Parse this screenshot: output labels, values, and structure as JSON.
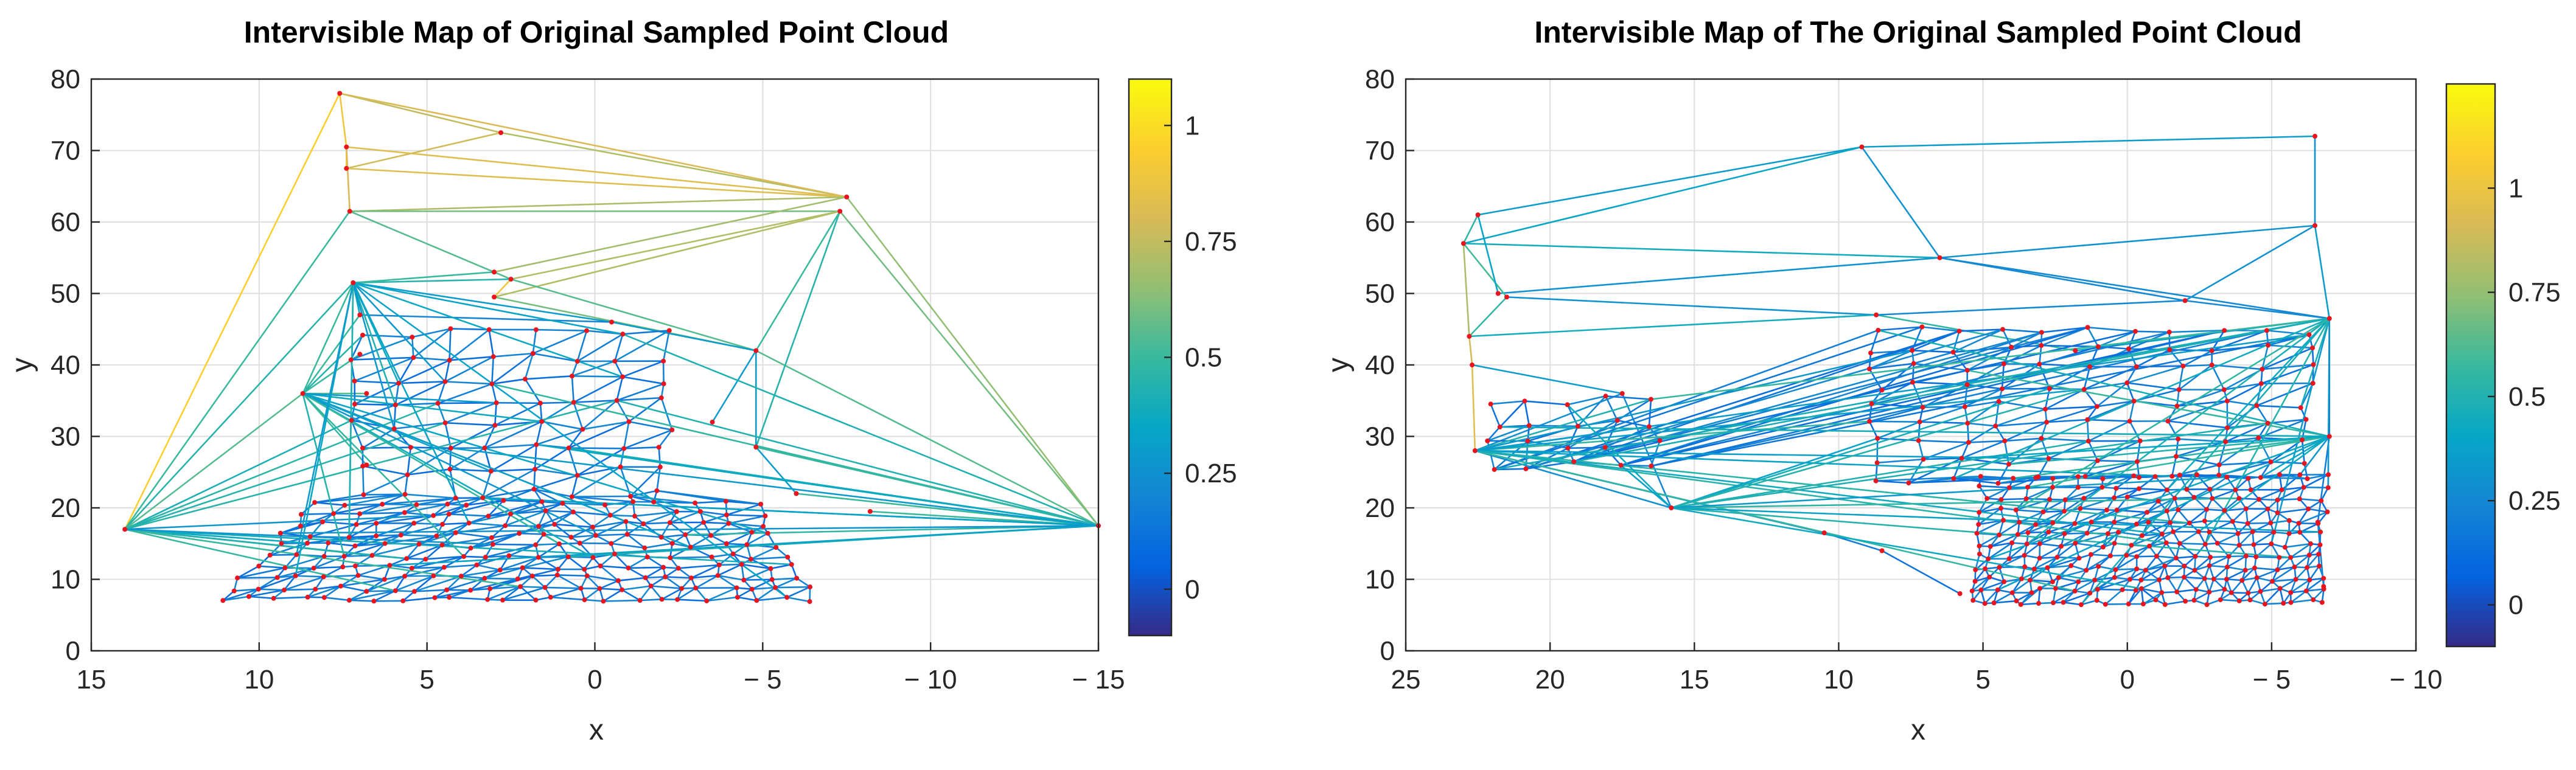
{
  "chart_data": [
    {
      "type": "network",
      "title": "Intervisible Map of Original Sampled Point Cloud",
      "xlabel": "x",
      "ylabel": "y",
      "xlim": [
        15,
        -15
      ],
      "ylim": [
        0,
        80
      ],
      "xticks": [
        15,
        10,
        5,
        0,
        -5,
        -10,
        -15
      ],
      "xtick_labels": [
        "15",
        "10",
        "5",
        "0",
        "− 5",
        "− 10",
        "− 15"
      ],
      "yticks": [
        0,
        10,
        20,
        30,
        40,
        50,
        60,
        70,
        80
      ],
      "ytick_labels": [
        "0",
        "10",
        "20",
        "30",
        "40",
        "50",
        "60",
        "70",
        "80"
      ],
      "grid": true,
      "colorbar": {
        "range": [
          -0.1,
          1.1
        ],
        "ticks": [
          0,
          0.25,
          0.5,
          0.75,
          1
        ],
        "tick_labels": [
          "0",
          "0.25",
          "0.5",
          "0.75",
          "1"
        ],
        "colormap": "parula"
      },
      "nodes": [
        [
          14,
          17
        ],
        [
          7.6,
          78
        ],
        [
          7.4,
          70.5
        ],
        [
          7.4,
          67.5
        ],
        [
          2.8,
          72.5
        ],
        [
          -7.5,
          63.5
        ],
        [
          -7.3,
          61.5
        ],
        [
          -15,
          17.5
        ],
        [
          7.3,
          61.5
        ],
        [
          7.2,
          51.5
        ],
        [
          3,
          53
        ],
        [
          3,
          49.5
        ],
        [
          2.5,
          52
        ],
        [
          -4.8,
          42
        ],
        [
          -4.8,
          28.5
        ],
        [
          8.7,
          36
        ],
        [
          7,
          47
        ],
        [
          7,
          41.5
        ],
        [
          -0.5,
          46
        ],
        [
          -6,
          22
        ],
        [
          -8.2,
          19.5
        ],
        [
          -3.5,
          32
        ],
        [
          6.8,
          36
        ],
        [
          6.8,
          26
        ]
      ],
      "edges_top": [
        [
          0,
          1,
          0.95
        ],
        [
          1,
          4,
          0.75
        ],
        [
          1,
          2,
          0.9
        ],
        [
          2,
          3,
          0.9
        ],
        [
          3,
          4,
          0.78
        ],
        [
          4,
          5,
          0.72
        ],
        [
          1,
          5,
          0.8
        ],
        [
          2,
          5,
          0.82
        ],
        [
          3,
          5,
          0.82
        ],
        [
          8,
          5,
          0.7
        ],
        [
          8,
          6,
          0.6
        ],
        [
          5,
          7,
          0.65
        ],
        [
          6,
          7,
          0.6
        ],
        [
          0,
          8,
          0.5
        ],
        [
          0,
          9,
          0.45
        ],
        [
          0,
          15,
          0.55
        ],
        [
          8,
          12,
          0.55
        ],
        [
          9,
          12,
          0.45
        ],
        [
          12,
          6,
          0.72
        ],
        [
          11,
          6,
          0.72
        ],
        [
          12,
          11,
          0.9
        ],
        [
          11,
          13,
          0.6
        ],
        [
          12,
          13,
          0.55
        ],
        [
          13,
          7,
          0.55
        ],
        [
          14,
          7,
          0.5
        ],
        [
          6,
          14,
          0.45
        ],
        [
          6,
          13,
          0.5
        ],
        [
          9,
          10,
          0.5
        ],
        [
          10,
          5,
          0.68
        ],
        [
          15,
          9,
          0.5
        ],
        [
          15,
          16,
          0.5
        ],
        [
          15,
          17,
          0.5
        ],
        [
          15,
          22,
          0.55
        ],
        [
          15,
          23,
          0.5
        ],
        [
          9,
          16,
          0.35
        ],
        [
          9,
          18,
          0.3
        ],
        [
          16,
          18,
          0.2
        ],
        [
          18,
          13,
          0.3
        ],
        [
          13,
          14,
          0.3
        ],
        [
          14,
          19,
          0.3
        ],
        [
          19,
          7,
          0.5
        ],
        [
          20,
          7,
          0.5
        ],
        [
          21,
          13,
          0.3
        ],
        [
          2,
          8,
          0.8
        ]
      ],
      "point_color": "#e8141e"
    },
    {
      "type": "network",
      "title": "Intervisible Map of The Original Sampled Point Cloud",
      "xlabel": "x",
      "ylabel": "y",
      "xlim": [
        25,
        -10
      ],
      "ylim": [
        0,
        80
      ],
      "xticks": [
        25,
        20,
        15,
        10,
        5,
        0,
        -5,
        -10
      ],
      "xtick_labels": [
        "25",
        "20",
        "15",
        "10",
        "5",
        "0",
        "− 5",
        "− 10"
      ],
      "yticks": [
        0,
        10,
        20,
        30,
        40,
        50,
        60,
        70,
        80
      ],
      "ytick_labels": [
        "0",
        "10",
        "20",
        "30",
        "40",
        "50",
        "60",
        "70",
        "80"
      ],
      "grid": true,
      "colorbar": {
        "range": [
          -0.1,
          1.25
        ],
        "ticks": [
          0,
          0.25,
          0.5,
          0.75,
          1
        ],
        "tick_labels": [
          "0",
          "0.25",
          "0.5",
          "0.75",
          "1"
        ],
        "colormap": "parula"
      },
      "nodes": [
        [
          23,
          57
        ],
        [
          22.5,
          61
        ],
        [
          22.8,
          44
        ],
        [
          22.7,
          40
        ],
        [
          22.6,
          28
        ],
        [
          21.5,
          49.5
        ],
        [
          21.8,
          50
        ],
        [
          9.2,
          70.5
        ],
        [
          -6.5,
          72
        ],
        [
          -6.5,
          59.5
        ],
        [
          6.5,
          55
        ],
        [
          8.7,
          47
        ],
        [
          1.8,
          42
        ],
        [
          -7,
          46.5
        ],
        [
          -7,
          30
        ],
        [
          -6.8,
          9
        ],
        [
          -6.6,
          18
        ],
        [
          17.5,
          36
        ],
        [
          15.8,
          20
        ],
        [
          10.5,
          16.5
        ],
        [
          8.5,
          14
        ],
        [
          5.8,
          8
        ],
        [
          -2,
          49
        ]
      ],
      "edges_top": [
        [
          0,
          1,
          0.55
        ],
        [
          0,
          2,
          0.8
        ],
        [
          2,
          3,
          0.9
        ],
        [
          3,
          4,
          0.95
        ],
        [
          1,
          7,
          0.35
        ],
        [
          0,
          7,
          0.4
        ],
        [
          7,
          8,
          0.35
        ],
        [
          8,
          9,
          0.3
        ],
        [
          7,
          10,
          0.3
        ],
        [
          0,
          10,
          0.45
        ],
        [
          9,
          10,
          0.3
        ],
        [
          10,
          13,
          0.25
        ],
        [
          9,
          13,
          0.35
        ],
        [
          5,
          11,
          0.3
        ],
        [
          6,
          10,
          0.3
        ],
        [
          2,
          11,
          0.45
        ],
        [
          11,
          12,
          0.55
        ],
        [
          12,
          13,
          0.4
        ],
        [
          3,
          17,
          0.35
        ],
        [
          4,
          17,
          0.3
        ],
        [
          4,
          18,
          0.3
        ],
        [
          17,
          18,
          0.25
        ],
        [
          4,
          19,
          0.2
        ],
        [
          19,
          20,
          0.2
        ],
        [
          20,
          21,
          0.15
        ],
        [
          13,
          14,
          0.2
        ],
        [
          14,
          16,
          0.2
        ],
        [
          16,
          15,
          0.2
        ],
        [
          9,
          22,
          0.3
        ],
        [
          22,
          13,
          0.25
        ],
        [
          11,
          22,
          0.25
        ],
        [
          0,
          5,
          0.6
        ],
        [
          2,
          5,
          0.55
        ],
        [
          1,
          6,
          0.4
        ],
        [
          10,
          22,
          0.25
        ]
      ],
      "point_color": "#e8141e"
    }
  ]
}
